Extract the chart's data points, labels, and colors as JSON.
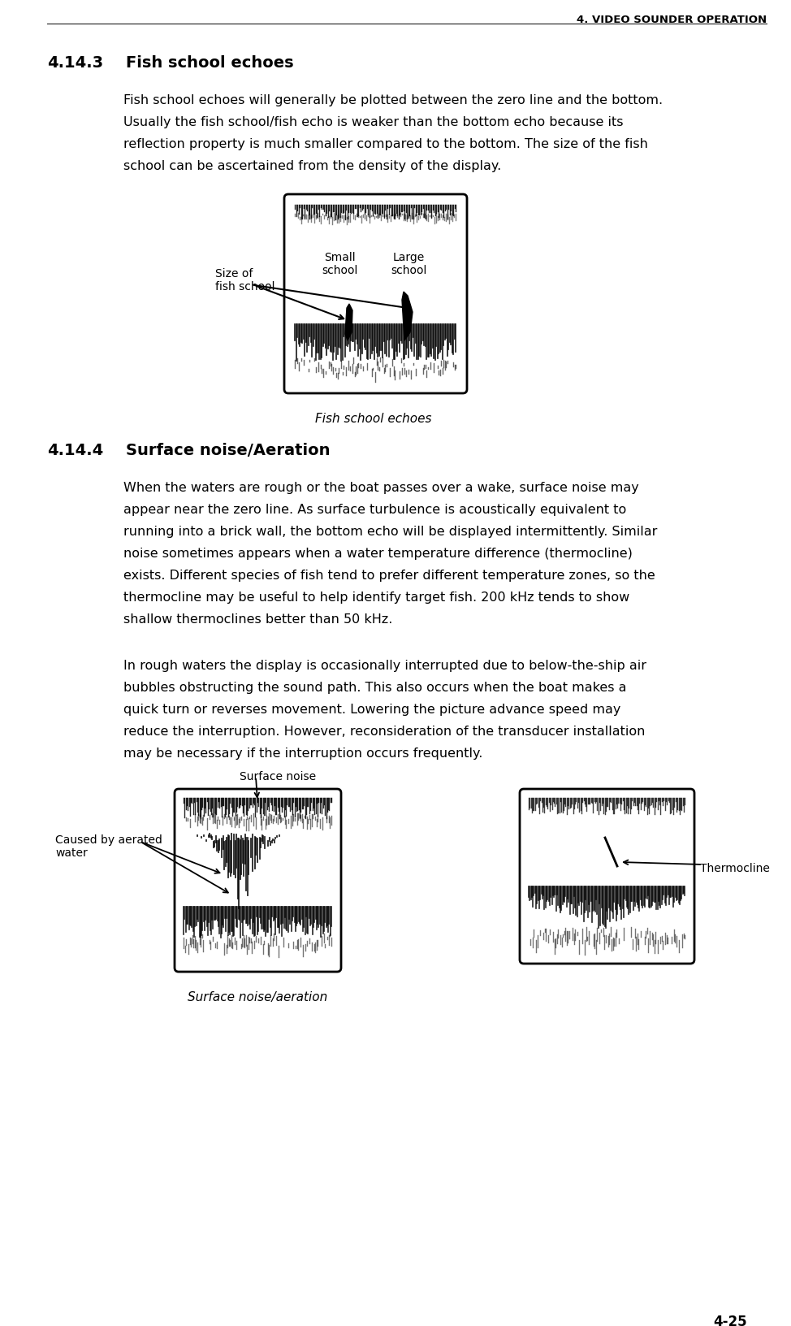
{
  "page_header": "4. VIDEO SOUNDER OPERATION",
  "page_number": "4-25",
  "section_1_num": "4.14.3",
  "section_1_title": "Fish school echoes",
  "section_1_body_lines": [
    "Fish school echoes will generally be plotted between the zero line and the bottom.",
    "Usually the fish school/fish echo is weaker than the bottom echo because its",
    "reflection property is much smaller compared to the bottom. The size of the fish",
    "school can be ascertained from the density of the display."
  ],
  "fig1_caption": "Fish school echoes",
  "fig1_label_small": "Small\nschool",
  "fig1_label_large": "Large\nschool",
  "fig1_label_size": "Size of\nfish school",
  "section_2_num": "4.14.4",
  "section_2_title": "Surface noise/Aeration",
  "section_2_body1_lines": [
    "When the waters are rough or the boat passes over a wake, surface noise may",
    "appear near the zero line. As surface turbulence is acoustically equivalent to",
    "running into a brick wall, the bottom echo will be displayed intermittently. Similar",
    "noise sometimes appears when a water temperature difference (thermocline)",
    "exists. Different species of fish tend to prefer different temperature zones, so the",
    "thermocline may be useful to help identify target fish. 200 kHz tends to show",
    "shallow thermoclines better than 50 kHz."
  ],
  "section_2_body2_lines": [
    "In rough waters the display is occasionally interrupted due to below-the-ship air",
    "bubbles obstructing the sound path. This also occurs when the boat makes a",
    "quick turn or reverses movement. Lowering the picture advance speed may",
    "reduce the interruption. However, reconsideration of the transducer installation",
    "may be necessary if the interruption occurs frequently."
  ],
  "fig2_caption": "Surface noise/aeration",
  "fig2_label_surface": "Surface noise",
  "fig2_label_aerated": "Caused by aerated\nwater",
  "fig2_label_thermo": "Thermocline",
  "bg_color": "#ffffff",
  "text_color": "#000000"
}
